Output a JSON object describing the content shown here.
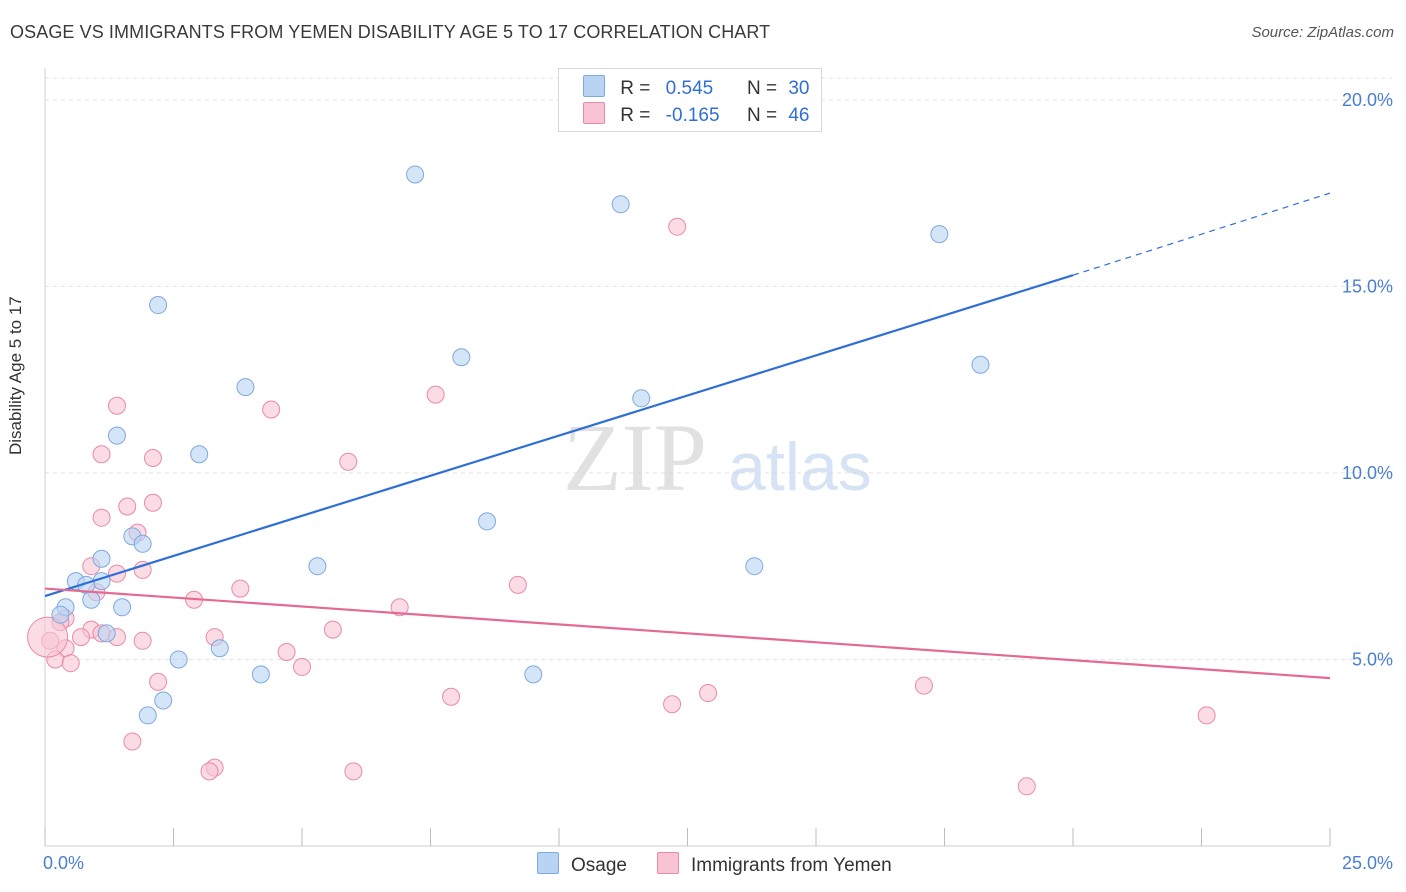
{
  "header": {
    "title": "OSAGE VS IMMIGRANTS FROM YEMEN DISABILITY AGE 5 TO 17 CORRELATION CHART",
    "source": "Source: ZipAtlas.com"
  },
  "legend": {
    "rows": [
      {
        "r_label": "R =",
        "r_value": "0.545",
        "n_label": "N =",
        "n_value": "30"
      },
      {
        "r_label": "R =",
        "r_value": "-0.165",
        "n_label": "N =",
        "n_value": "46"
      }
    ]
  },
  "watermark": {
    "part1": "ZIP",
    "part2": "atlas"
  },
  "colors": {
    "osage_fill": "#b9d3f3",
    "osage_stroke": "#7ea9de",
    "osage_line": "#2f6fd6",
    "yemen_fill": "#f8c4d4",
    "yemen_stroke": "#e98aa8",
    "yemen_line": "#e46a93",
    "tick_label": "#4a7fd0",
    "grid": "#e2e2e2"
  },
  "chart_data": {
    "type": "scatter",
    "title": "OSAGE VS IMMIGRANTS FROM YEMEN DISABILITY AGE 5 TO 17 CORRELATION CHART",
    "xlabel": "",
    "ylabel": "Disability Age 5 to 17",
    "xlim": [
      0,
      25
    ],
    "ylim": [
      0,
      20.8
    ],
    "x_tick_labels": [
      "0.0%",
      "25.0%"
    ],
    "y_ticks": [
      5,
      10,
      15,
      20
    ],
    "y_tick_labels": [
      "5.0%",
      "10.0%",
      "15.0%",
      "20.0%"
    ],
    "grid": "horizontal dashed",
    "legend_position": "top-center",
    "series": [
      {
        "name": "Osage",
        "color": "#b9d3f3",
        "points": [
          [
            7.2,
            18.0
          ],
          [
            11.2,
            17.2
          ],
          [
            17.4,
            16.4
          ],
          [
            2.2,
            14.5
          ],
          [
            8.1,
            13.1
          ],
          [
            18.2,
            12.9
          ],
          [
            3.9,
            12.3
          ],
          [
            11.6,
            12.0
          ],
          [
            1.4,
            11.0
          ],
          [
            3.0,
            10.5
          ],
          [
            8.6,
            8.7
          ],
          [
            1.7,
            8.3
          ],
          [
            1.9,
            8.1
          ],
          [
            1.1,
            7.7
          ],
          [
            5.3,
            7.5
          ],
          [
            13.8,
            7.5
          ],
          [
            1.1,
            7.1
          ],
          [
            0.6,
            7.1
          ],
          [
            0.8,
            7.0
          ],
          [
            0.9,
            6.6
          ],
          [
            0.4,
            6.4
          ],
          [
            1.5,
            6.4
          ],
          [
            0.3,
            6.2
          ],
          [
            1.2,
            5.7
          ],
          [
            3.4,
            5.3
          ],
          [
            2.6,
            5.0
          ],
          [
            4.2,
            4.6
          ],
          [
            9.5,
            4.6
          ],
          [
            2.3,
            3.9
          ],
          [
            2.0,
            3.5
          ]
        ],
        "trend": {
          "x": [
            0,
            20
          ],
          "y": [
            6.7,
            15.3
          ]
        },
        "trend_dashed_extension": {
          "x": [
            20,
            25
          ],
          "y": [
            15.3,
            17.5
          ]
        }
      },
      {
        "name": "Immigrants from Yemen",
        "color": "#f8c4d4",
        "points": [
          [
            12.3,
            16.6
          ],
          [
            7.6,
            12.1
          ],
          [
            1.4,
            11.8
          ],
          [
            4.4,
            11.7
          ],
          [
            1.1,
            10.5
          ],
          [
            2.1,
            10.4
          ],
          [
            5.9,
            10.3
          ],
          [
            2.1,
            9.2
          ],
          [
            1.6,
            9.1
          ],
          [
            1.1,
            8.8
          ],
          [
            1.8,
            8.4
          ],
          [
            0.9,
            7.5
          ],
          [
            1.9,
            7.4
          ],
          [
            1.4,
            7.3
          ],
          [
            9.2,
            7.0
          ],
          [
            3.8,
            6.9
          ],
          [
            1.0,
            6.8
          ],
          [
            2.9,
            6.6
          ],
          [
            6.9,
            6.4
          ],
          [
            0.4,
            6.1
          ],
          [
            0.3,
            6.0
          ],
          [
            0.9,
            5.8
          ],
          [
            5.6,
            5.8
          ],
          [
            1.1,
            5.7
          ],
          [
            1.4,
            5.6
          ],
          [
            1.9,
            5.5
          ],
          [
            3.3,
            5.6
          ],
          [
            0.7,
            5.6
          ],
          [
            0.1,
            5.5
          ],
          [
            0.4,
            5.3
          ],
          [
            4.7,
            5.2
          ],
          [
            0.2,
            5.0
          ],
          [
            0.5,
            4.9
          ],
          [
            5.0,
            4.8
          ],
          [
            2.2,
            4.4
          ],
          [
            17.1,
            4.3
          ],
          [
            12.9,
            4.1
          ],
          [
            7.9,
            4.0
          ],
          [
            12.2,
            3.8
          ],
          [
            22.6,
            3.5
          ],
          [
            1.7,
            2.8
          ],
          [
            3.3,
            2.1
          ],
          [
            3.2,
            2.0
          ],
          [
            6.0,
            2.0
          ],
          [
            19.1,
            1.6
          ],
          [
            0.05,
            5.6
          ]
        ],
        "trend": {
          "x": [
            0,
            25
          ],
          "y": [
            6.9,
            4.5
          ]
        }
      }
    ]
  },
  "bottom_legend": {
    "items": [
      "Osage",
      "Immigrants from Yemen"
    ]
  }
}
